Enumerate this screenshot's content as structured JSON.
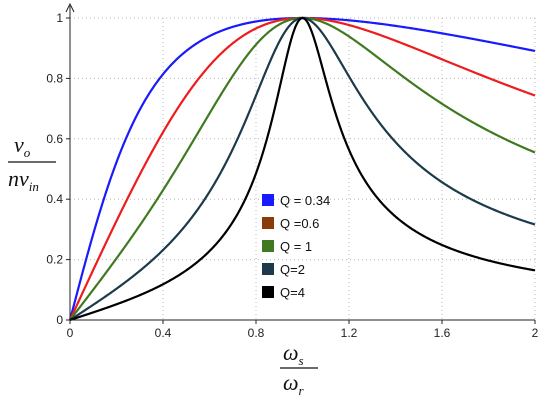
{
  "chart_data": {
    "type": "line",
    "title": "",
    "xlabel": {
      "numerator": {
        "symbol": "ω",
        "subscript": "s"
      },
      "denominator": {
        "symbol": "ω",
        "subscript": "r"
      }
    },
    "ylabel": {
      "numerator": {
        "symbol": "v",
        "subscript": "o"
      },
      "denominator": {
        "symbol": "nv",
        "subscript": "in"
      }
    },
    "xlim": [
      0,
      2
    ],
    "ylim": [
      0,
      1
    ],
    "xticks": [
      "0",
      "0.4",
      "0.8",
      "1.2",
      "1.6",
      "2"
    ],
    "yticks": [
      "0",
      "0.2",
      "0.4",
      "0.6",
      "0.8",
      "1"
    ],
    "grid": true,
    "legend_position": "center",
    "series": [
      {
        "name": "Q = 0.34",
        "color": "#1a1aff",
        "Q": 0.34
      },
      {
        "name": "Q =0.6",
        "color": "#ee1c1c",
        "legend_color": "#8b3a0a",
        "Q": 0.6
      },
      {
        "name": "Q = 1",
        "color": "#3f7a20",
        "Q": 1
      },
      {
        "name": "Q=2",
        "color": "#1c3a4a",
        "Q": 2
      },
      {
        "name": "Q=4",
        "color": "#000000",
        "Q": 4
      }
    ]
  }
}
